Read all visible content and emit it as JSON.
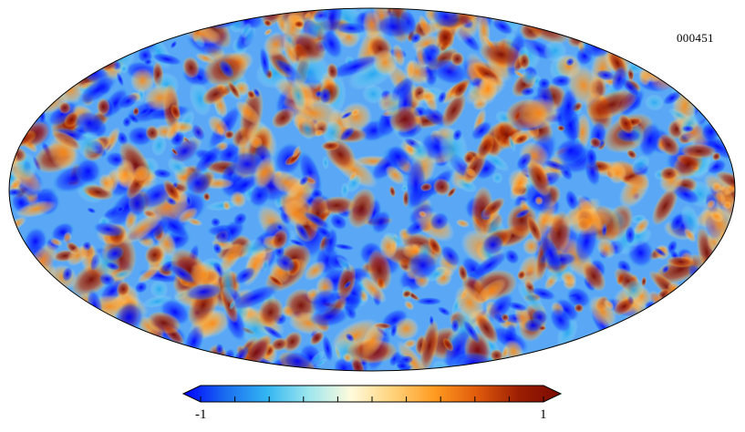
{
  "map": {
    "id_label": "000451",
    "projection": "mollweide"
  },
  "colorbar": {
    "min_label": "-1",
    "max_label": "1",
    "min": -1,
    "max": 1,
    "ticks": 10,
    "colors": [
      "#0000ff",
      "#1a6cf0",
      "#33b6f2",
      "#9ee6ee",
      "#fffbdc",
      "#ffd27a",
      "#ff9a1f",
      "#e05a0c",
      "#9c1e03",
      "#7a0a00"
    ]
  }
}
